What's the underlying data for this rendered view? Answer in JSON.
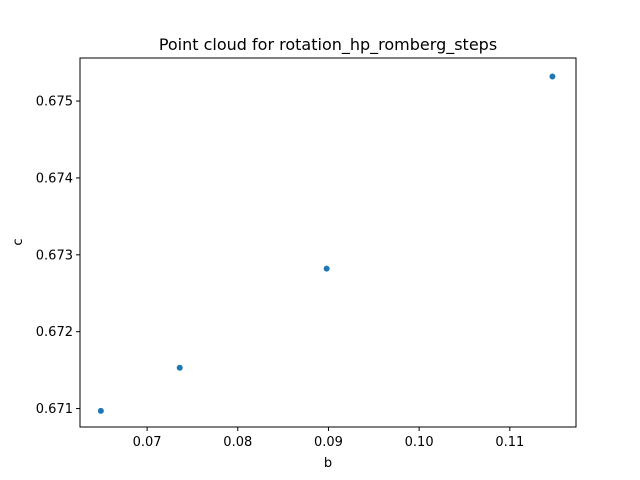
{
  "chart_data": {
    "type": "scatter",
    "title": "Point cloud for rotation_hp_romberg_steps",
    "xlabel": "b",
    "ylabel": "c",
    "xlim": [
      0.0626,
      0.1173
    ],
    "ylim": [
      0.67076,
      0.67556
    ],
    "x_ticks": [
      "0.07",
      "0.08",
      "0.09",
      "0.10",
      "0.11"
    ],
    "x_tick_values": [
      0.07,
      0.08,
      0.09,
      0.1,
      0.11
    ],
    "y_ticks": [
      "0.671",
      "0.672",
      "0.673",
      "0.674",
      "0.675"
    ],
    "y_tick_values": [
      0.671,
      0.672,
      0.673,
      0.674,
      0.675
    ],
    "grid": false,
    "legend": "none",
    "marker_color": "#1f77b4",
    "points": [
      {
        "x": 0.0649,
        "y": 0.67097
      },
      {
        "x": 0.0736,
        "y": 0.67153
      },
      {
        "x": 0.0898,
        "y": 0.67282
      },
      {
        "x": 0.1147,
        "y": 0.67532
      }
    ]
  }
}
